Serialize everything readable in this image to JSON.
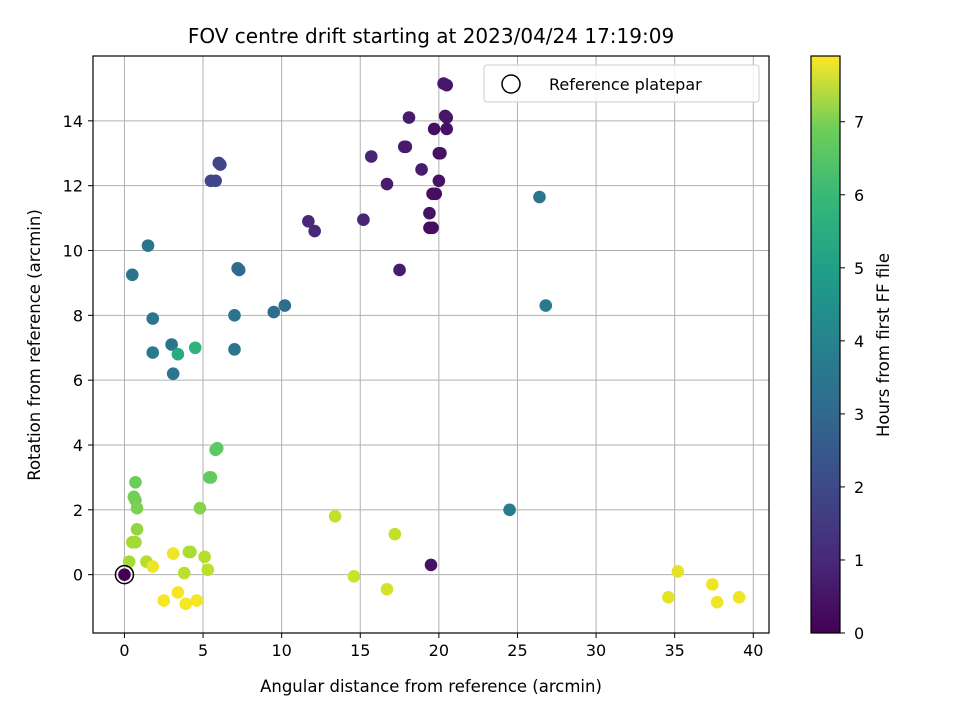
{
  "chart_data": {
    "type": "scatter",
    "title": "FOV centre drift starting at 2023/04/24 17:19:09",
    "xlabel": "Angular distance from reference (arcmin)",
    "ylabel": "Rotation from reference (arcmin)",
    "xlim": [
      -2,
      41
    ],
    "ylim": [
      -1.8,
      16
    ],
    "xticks": [
      0,
      5,
      10,
      15,
      20,
      25,
      30,
      35,
      40
    ],
    "yticks": [
      0,
      2,
      4,
      6,
      8,
      10,
      12,
      14
    ],
    "grid": true,
    "legend": {
      "position": "top-right",
      "entries": [
        "Reference platepar"
      ]
    },
    "colorbar": {
      "label": "Hours from first FF file",
      "range": [
        0,
        7.9
      ],
      "ticks": [
        0,
        1,
        2,
        3,
        4,
        5,
        6,
        7
      ],
      "colormap": "viridis"
    },
    "reference_point": {
      "x": 0,
      "y": 0
    },
    "points": [
      {
        "x": 20.3,
        "y": 15.15,
        "c": 0.5
      },
      {
        "x": 20.5,
        "y": 15.1,
        "c": 0.5
      },
      {
        "x": 20.4,
        "y": 14.15,
        "c": 0.5
      },
      {
        "x": 20.5,
        "y": 14.1,
        "c": 0.5
      },
      {
        "x": 18.1,
        "y": 14.1,
        "c": 0.6
      },
      {
        "x": 19.7,
        "y": 13.75,
        "c": 0.3
      },
      {
        "x": 20.5,
        "y": 13.75,
        "c": 0.4
      },
      {
        "x": 17.8,
        "y": 13.2,
        "c": 0.6
      },
      {
        "x": 17.9,
        "y": 13.2,
        "c": 0.6
      },
      {
        "x": 20.0,
        "y": 13.0,
        "c": 0.3
      },
      {
        "x": 20.1,
        "y": 13.0,
        "c": 0.4
      },
      {
        "x": 15.7,
        "y": 12.9,
        "c": 0.8
      },
      {
        "x": 18.9,
        "y": 12.5,
        "c": 0.6
      },
      {
        "x": 20.0,
        "y": 12.15,
        "c": 0.4
      },
      {
        "x": 16.7,
        "y": 12.05,
        "c": 0.6
      },
      {
        "x": 19.6,
        "y": 11.75,
        "c": 0.3
      },
      {
        "x": 19.8,
        "y": 11.75,
        "c": 0.3
      },
      {
        "x": 19.4,
        "y": 11.15,
        "c": 0.4
      },
      {
        "x": 15.2,
        "y": 10.95,
        "c": 0.8
      },
      {
        "x": 11.7,
        "y": 10.9,
        "c": 0.9
      },
      {
        "x": 19.4,
        "y": 10.7,
        "c": 0.3
      },
      {
        "x": 19.6,
        "y": 10.7,
        "c": 0.3
      },
      {
        "x": 12.1,
        "y": 10.6,
        "c": 0.9
      },
      {
        "x": 17.5,
        "y": 9.4,
        "c": 0.6
      },
      {
        "x": 19.5,
        "y": 0.3,
        "c": 0.4
      },
      {
        "x": 6.0,
        "y": 12.7,
        "c": 1.7
      },
      {
        "x": 6.1,
        "y": 12.65,
        "c": 1.7
      },
      {
        "x": 5.5,
        "y": 12.15,
        "c": 1.7
      },
      {
        "x": 5.8,
        "y": 12.15,
        "c": 1.7
      },
      {
        "x": 26.4,
        "y": 11.65,
        "c": 3.1
      },
      {
        "x": 1.5,
        "y": 10.15,
        "c": 3.0
      },
      {
        "x": 0.5,
        "y": 9.25,
        "c": 3.0
      },
      {
        "x": 7.2,
        "y": 9.45,
        "c": 2.7
      },
      {
        "x": 7.3,
        "y": 9.4,
        "c": 2.7
      },
      {
        "x": 26.8,
        "y": 8.3,
        "c": 3.2
      },
      {
        "x": 10.2,
        "y": 8.3,
        "c": 2.8
      },
      {
        "x": 9.5,
        "y": 8.1,
        "c": 2.8
      },
      {
        "x": 7.0,
        "y": 8.0,
        "c": 3.0
      },
      {
        "x": 1.8,
        "y": 7.9,
        "c": 3.1
      },
      {
        "x": 3.0,
        "y": 7.1,
        "c": 3.0
      },
      {
        "x": 4.5,
        "y": 7.0,
        "c": 5.1
      },
      {
        "x": 7.0,
        "y": 6.95,
        "c": 3.0
      },
      {
        "x": 1.8,
        "y": 6.85,
        "c": 3.2
      },
      {
        "x": 3.4,
        "y": 6.8,
        "c": 4.8
      },
      {
        "x": 3.1,
        "y": 6.2,
        "c": 3.1
      },
      {
        "x": 24.5,
        "y": 2.0,
        "c": 3.3
      },
      {
        "x": 5.8,
        "y": 3.85,
        "c": 5.9
      },
      {
        "x": 5.9,
        "y": 3.9,
        "c": 5.9
      },
      {
        "x": 5.4,
        "y": 3.0,
        "c": 6.0
      },
      {
        "x": 5.5,
        "y": 3.0,
        "c": 6.0
      },
      {
        "x": 0.7,
        "y": 2.85,
        "c": 6.1
      },
      {
        "x": 0.6,
        "y": 2.4,
        "c": 6.2
      },
      {
        "x": 0.7,
        "y": 2.3,
        "c": 6.2
      },
      {
        "x": 0.8,
        "y": 2.05,
        "c": 6.3
      },
      {
        "x": 4.8,
        "y": 2.05,
        "c": 6.4
      },
      {
        "x": 13.4,
        "y": 1.8,
        "c": 7.2
      },
      {
        "x": 0.8,
        "y": 1.4,
        "c": 6.6
      },
      {
        "x": 17.2,
        "y": 1.25,
        "c": 7.2
      },
      {
        "x": 0.5,
        "y": 1.0,
        "c": 6.8
      },
      {
        "x": 0.7,
        "y": 1.0,
        "c": 6.8
      },
      {
        "x": 4.1,
        "y": 0.7,
        "c": 6.9
      },
      {
        "x": 4.2,
        "y": 0.7,
        "c": 6.9
      },
      {
        "x": 3.1,
        "y": 0.65,
        "c": 7.7
      },
      {
        "x": 5.1,
        "y": 0.55,
        "c": 7.0
      },
      {
        "x": 0.3,
        "y": 0.4,
        "c": 6.8
      },
      {
        "x": 1.4,
        "y": 0.4,
        "c": 7.0
      },
      {
        "x": 1.8,
        "y": 0.25,
        "c": 7.7
      },
      {
        "x": 5.3,
        "y": 0.15,
        "c": 7.1
      },
      {
        "x": 35.2,
        "y": 0.1,
        "c": 7.6
      },
      {
        "x": 3.8,
        "y": 0.05,
        "c": 7.1
      },
      {
        "x": 14.6,
        "y": -0.05,
        "c": 7.3
      },
      {
        "x": 37.4,
        "y": -0.3,
        "c": 7.7
      },
      {
        "x": 16.7,
        "y": -0.45,
        "c": 7.4
      },
      {
        "x": 3.4,
        "y": -0.55,
        "c": 7.8
      },
      {
        "x": 34.6,
        "y": -0.7,
        "c": 7.6
      },
      {
        "x": 39.1,
        "y": -0.7,
        "c": 7.7
      },
      {
        "x": 2.5,
        "y": -0.8,
        "c": 7.8
      },
      {
        "x": 4.6,
        "y": -0.8,
        "c": 7.8
      },
      {
        "x": 37.7,
        "y": -0.85,
        "c": 7.7
      },
      {
        "x": 3.9,
        "y": -0.9,
        "c": 7.8
      },
      {
        "x": 0.0,
        "y": 0.0,
        "c": 0.0
      }
    ]
  }
}
